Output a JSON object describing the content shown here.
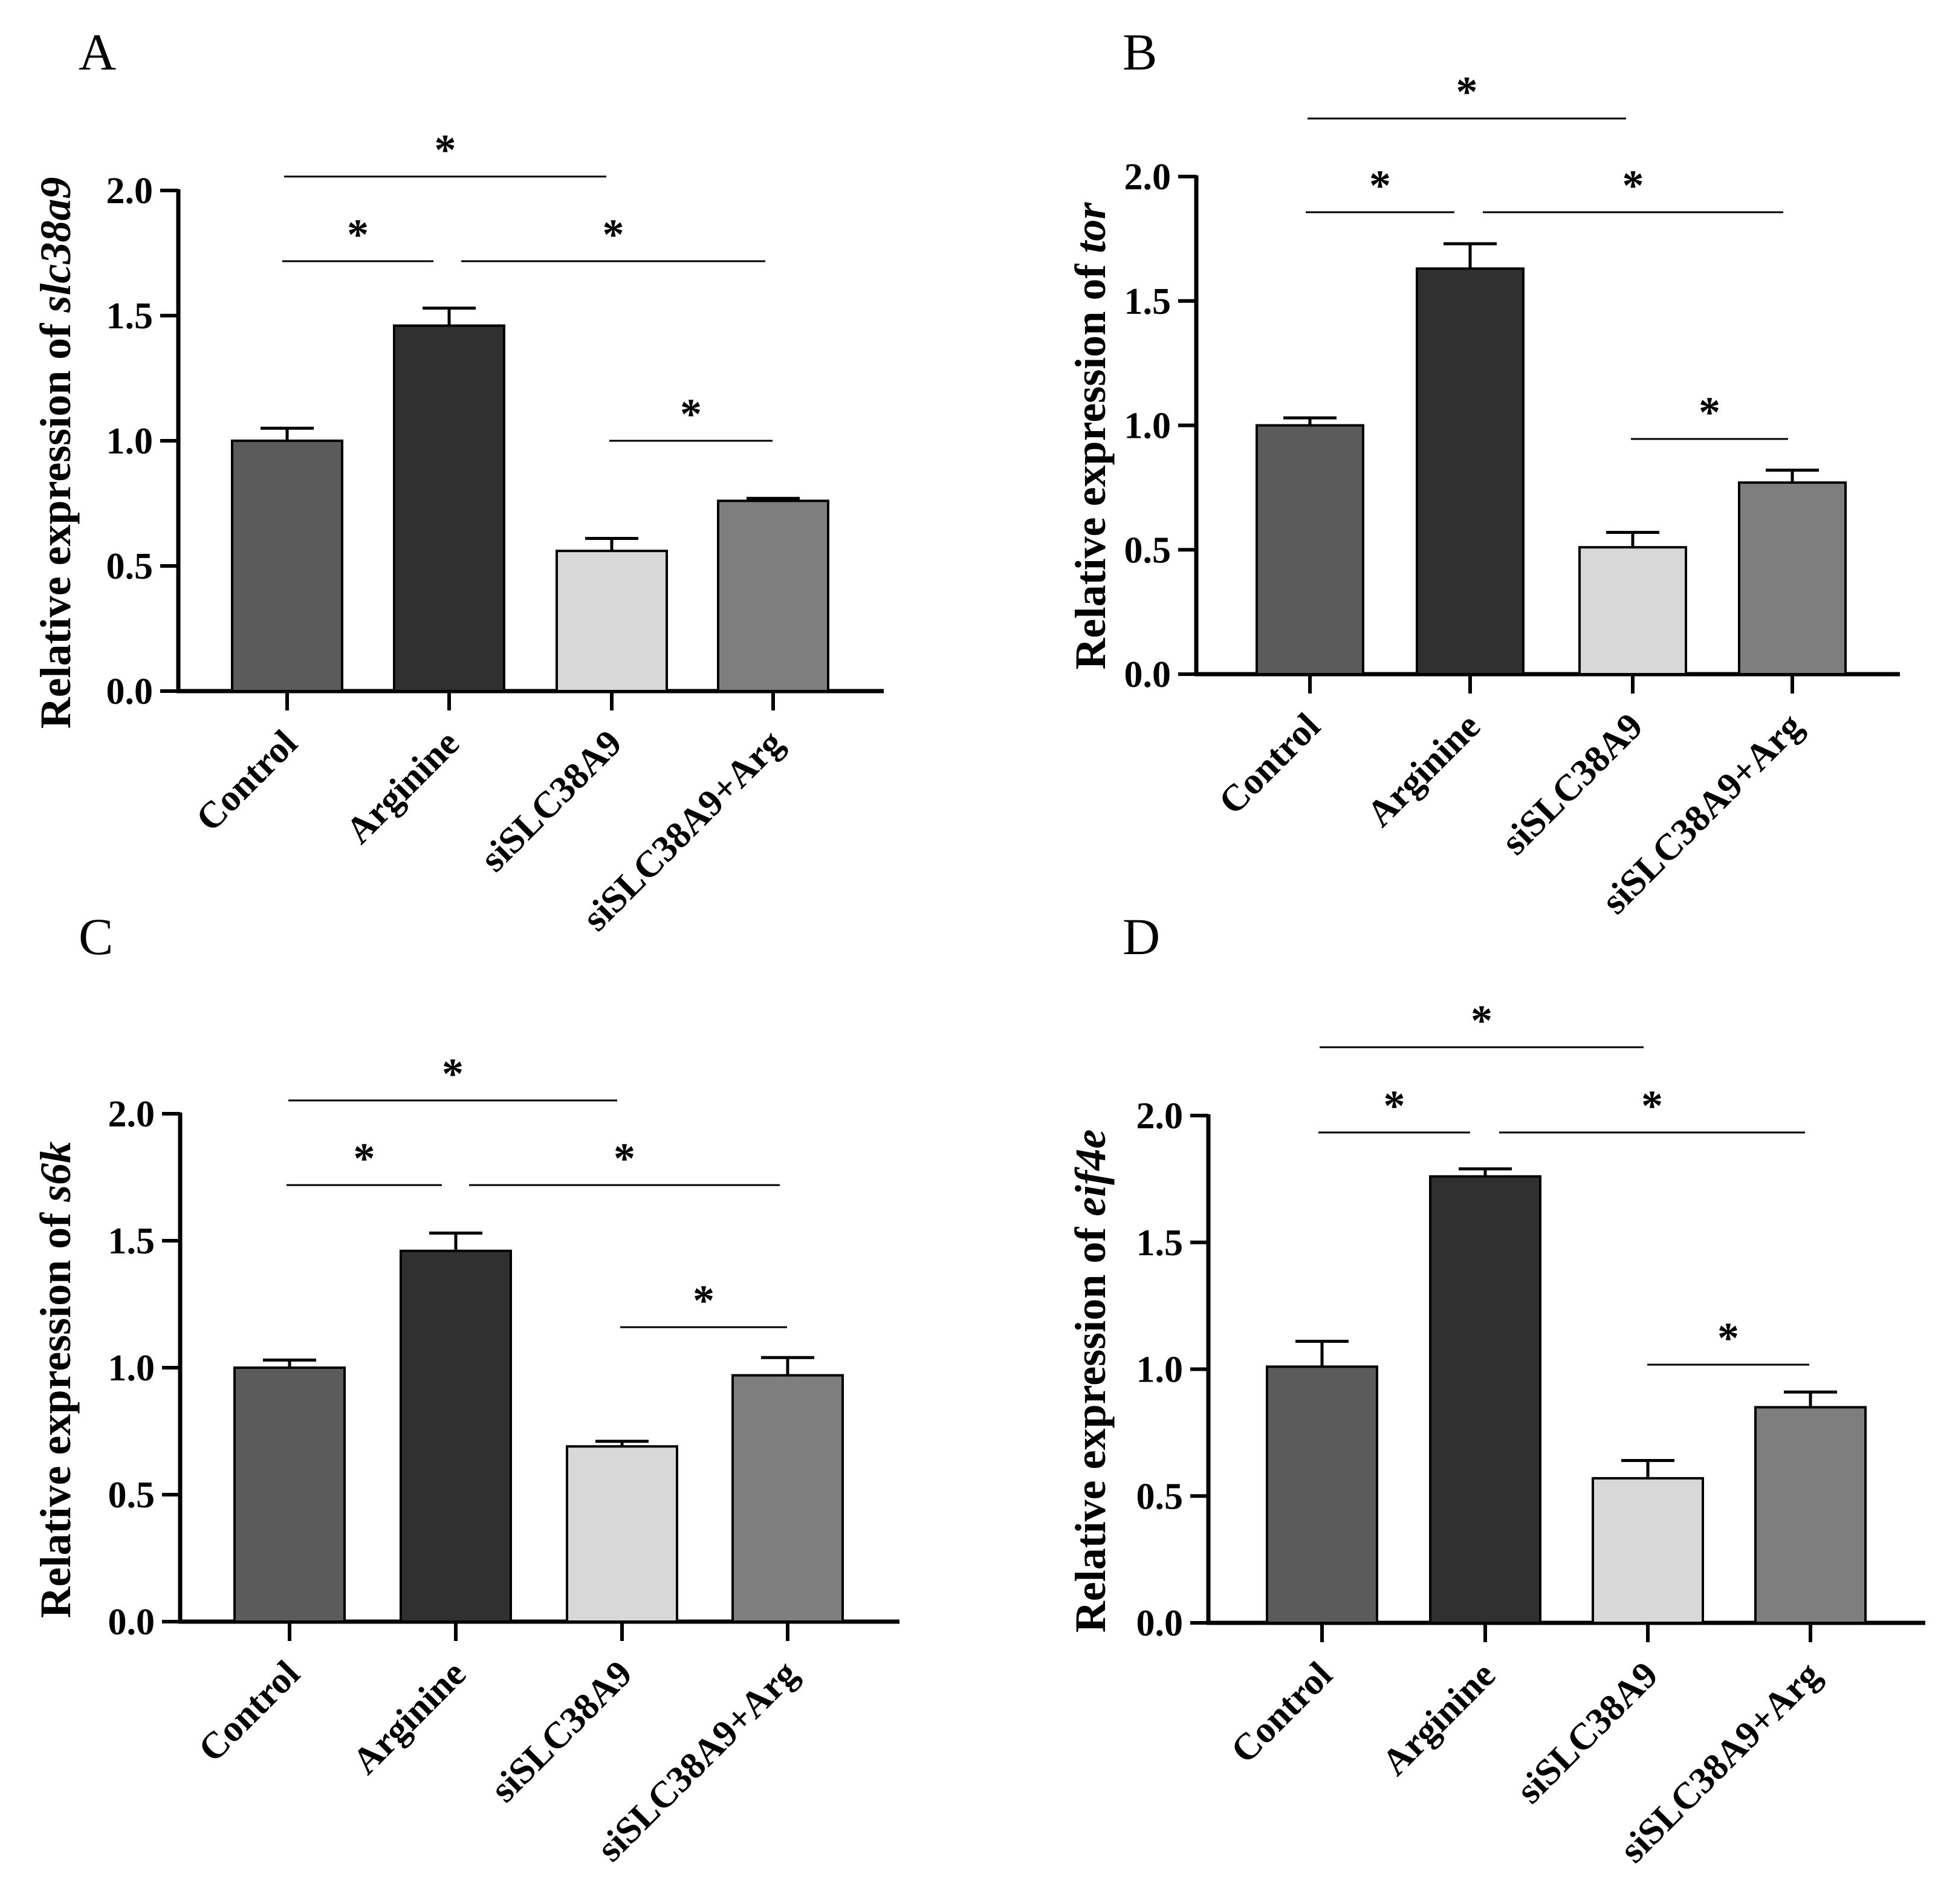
{
  "figure": {
    "colors": {
      "Control": "#5b5b5b",
      "Arginine": "#303030",
      "siSLC38A9": "#d8d8d8",
      "siSLC38A9+Arg": "#7e7e7e"
    }
  },
  "chart_data": [
    {
      "panel": "A",
      "type": "bar",
      "ylabel_prefix": "Relative expression of ",
      "gene": "slc38a9",
      "categories": [
        "Control",
        "Arginine",
        "siSLC38A9",
        "siSLC38A9+Arg"
      ],
      "values": [
        1.0,
        1.46,
        0.56,
        0.76
      ],
      "errors": [
        0.05,
        0.07,
        0.05,
        0.01
      ],
      "ylim": [
        0,
        2.0
      ],
      "yticks": [
        "0.0",
        "0.5",
        "1.0",
        "1.5",
        "2.0"
      ],
      "significance": [
        {
          "from": "Control",
          "to": "Arginine",
          "label": "*"
        },
        {
          "from": "Arginine",
          "to": "siSLC38A9+Arg",
          "label": "*"
        },
        {
          "from": "Control",
          "to": "siSLC38A9",
          "label": "*"
        },
        {
          "from": "siSLC38A9",
          "to": "siSLC38A9+Arg",
          "label": "*"
        }
      ]
    },
    {
      "panel": "B",
      "type": "bar",
      "ylabel_prefix": "Relative expression of ",
      "gene": "tor",
      "categories": [
        "Control",
        "Arginine",
        "siSLC38A9",
        "siSLC38A9+Arg"
      ],
      "values": [
        1.0,
        1.63,
        0.51,
        0.77
      ],
      "errors": [
        0.03,
        0.1,
        0.06,
        0.05
      ],
      "ylim": [
        0,
        2.0
      ],
      "yticks": [
        "0.0",
        "0.5",
        "1.0",
        "1.5",
        "2.0"
      ],
      "significance": [
        {
          "from": "Control",
          "to": "Arginine",
          "label": "*"
        },
        {
          "from": "Arginine",
          "to": "siSLC38A9+Arg",
          "label": "*"
        },
        {
          "from": "Control",
          "to": "siSLC38A9",
          "label": "*"
        },
        {
          "from": "siSLC38A9",
          "to": "siSLC38A9+Arg",
          "label": "*"
        }
      ]
    },
    {
      "panel": "C",
      "type": "bar",
      "ylabel_prefix": "Relative expression of ",
      "gene": "s6k",
      "categories": [
        "Control",
        "Arginine",
        "siSLC38A9",
        "siSLC38A9+Arg"
      ],
      "values": [
        1.0,
        1.46,
        0.69,
        0.97
      ],
      "errors": [
        0.03,
        0.07,
        0.02,
        0.07
      ],
      "ylim": [
        0,
        2.0
      ],
      "yticks": [
        "0.0",
        "0.5",
        "1.0",
        "1.5",
        "2.0"
      ],
      "significance": [
        {
          "from": "Control",
          "to": "Arginine",
          "label": "*"
        },
        {
          "from": "Arginine",
          "to": "siSLC38A9+Arg",
          "label": "*"
        },
        {
          "from": "Control",
          "to": "siSLC38A9",
          "label": "*"
        },
        {
          "from": "siSLC38A9",
          "to": "siSLC38A9+Arg",
          "label": "*"
        }
      ]
    },
    {
      "panel": "D",
      "type": "bar",
      "ylabel_prefix": "Relative expression of ",
      "gene": "eif4e",
      "categories": [
        "Control",
        "Arginine",
        "siSLC38A9",
        "siSLC38A9+Arg"
      ],
      "values": [
        1.01,
        1.76,
        0.57,
        0.85
      ],
      "errors": [
        0.1,
        0.03,
        0.07,
        0.06
      ],
      "ylim": [
        0,
        2.0
      ],
      "yticks": [
        "0.0",
        "0.5",
        "1.0",
        "1.5",
        "2.0"
      ],
      "significance": [
        {
          "from": "Control",
          "to": "Arginine",
          "label": "*"
        },
        {
          "from": "Arginine",
          "to": "siSLC38A9+Arg",
          "label": "*"
        },
        {
          "from": "Control",
          "to": "siSLC38A9",
          "label": "*"
        },
        {
          "from": "siSLC38A9",
          "to": "siSLC38A9+Arg",
          "label": "*"
        }
      ]
    }
  ]
}
